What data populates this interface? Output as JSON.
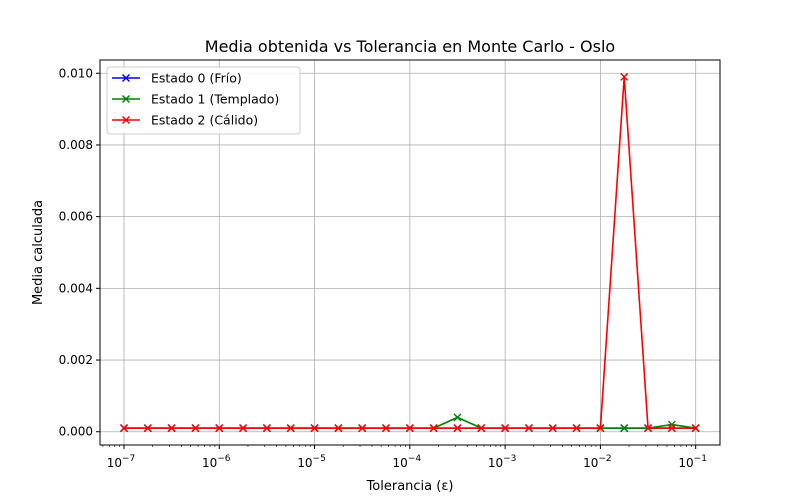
{
  "chart_data": {
    "type": "line",
    "title": "Media obtenida vs Tolerancia en Monte Carlo - Oslo",
    "xlabel": "Tolerancia (ε)",
    "ylabel": "Media calculada",
    "xscale": "log",
    "xlim": [
      5.6e-08,
      0.18
    ],
    "ylim": [
      -0.00037,
      0.01037
    ],
    "grid": true,
    "legend_position": "top-left",
    "x_ticks": [
      {
        "value": 1e-07,
        "base": "10",
        "exp": "−7"
      },
      {
        "value": 1e-06,
        "base": "10",
        "exp": "−6"
      },
      {
        "value": 1e-05,
        "base": "10",
        "exp": "−5"
      },
      {
        "value": 0.0001,
        "base": "10",
        "exp": "−4"
      },
      {
        "value": 0.001,
        "base": "10",
        "exp": "−3"
      },
      {
        "value": 0.01,
        "base": "10",
        "exp": "−2"
      },
      {
        "value": 0.1,
        "base": "10",
        "exp": "−1"
      }
    ],
    "y_ticks": [
      {
        "value": 0.0,
        "label": "0.000"
      },
      {
        "value": 0.002,
        "label": "0.002"
      },
      {
        "value": 0.004,
        "label": "0.004"
      },
      {
        "value": 0.006,
        "label": "0.006"
      },
      {
        "value": 0.008,
        "label": "0.008"
      },
      {
        "value": 0.01,
        "label": "0.010"
      }
    ],
    "x": [
      1e-07,
      1.778e-07,
      3.162e-07,
      5.623e-07,
      1e-06,
      1.778e-06,
      3.162e-06,
      5.623e-06,
      1e-05,
      1.778e-05,
      3.162e-05,
      5.623e-05,
      0.0001,
      0.0001778,
      0.0003162,
      0.0005623,
      0.001,
      0.001778,
      0.003162,
      0.005623,
      0.01,
      0.01778,
      0.03162,
      0.05623,
      0.1
    ],
    "series": [
      {
        "name": "Estado 0 (Frío)",
        "color": "#0000ff",
        "values": [
          0.0001,
          0.0001,
          0.0001,
          0.0001,
          0.0001,
          0.0001,
          0.0001,
          0.0001,
          0.0001,
          0.0001,
          0.0001,
          0.0001,
          0.0001,
          0.0001,
          0.0001,
          0.0001,
          0.0001,
          0.0001,
          0.0001,
          0.0001,
          0.0001,
          0.0001,
          0.0001,
          0.0001,
          0.0001
        ]
      },
      {
        "name": "Estado 1 (Templado)",
        "color": "#008000",
        "values": [
          0.0001,
          0.0001,
          0.0001,
          0.0001,
          0.0001,
          0.0001,
          0.0001,
          0.0001,
          0.0001,
          0.0001,
          0.0001,
          0.0001,
          0.0001,
          0.0001,
          0.0004,
          0.0001,
          0.0001,
          0.0001,
          0.0001,
          0.0001,
          0.0001,
          0.0001,
          0.0001,
          0.0002,
          0.0001
        ]
      },
      {
        "name": "Estado 2 (Cálido)",
        "color": "#ff0000",
        "values": [
          0.0001,
          0.0001,
          0.0001,
          0.0001,
          0.0001,
          0.0001,
          0.0001,
          0.0001,
          0.0001,
          0.0001,
          0.0001,
          0.0001,
          0.0001,
          0.0001,
          0.0001,
          0.0001,
          0.0001,
          0.0001,
          0.0001,
          0.0001,
          0.0001,
          0.0099,
          0.0001,
          0.0001,
          0.0001
        ]
      }
    ]
  }
}
